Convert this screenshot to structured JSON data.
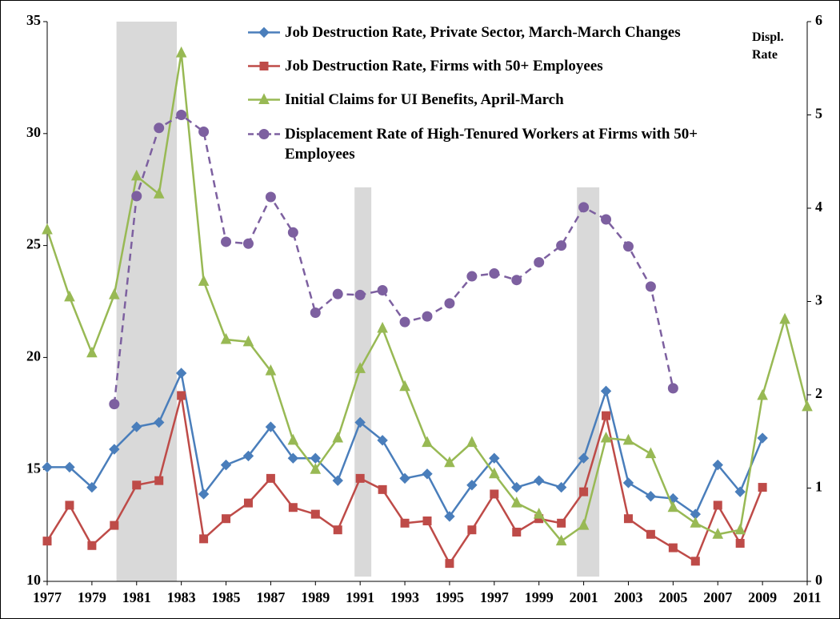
{
  "chart_data": {
    "type": "line",
    "y2_label": "Displ. Rate",
    "x": [
      1977,
      1978,
      1979,
      1980,
      1981,
      1982,
      1983,
      1984,
      1985,
      1986,
      1987,
      1988,
      1989,
      1990,
      1991,
      1992,
      1993,
      1994,
      1995,
      1996,
      1997,
      1998,
      1999,
      2000,
      2001,
      2002,
      2003,
      2004,
      2005,
      2006,
      2007,
      2008,
      2009,
      2010,
      2011
    ],
    "xlim": [
      1977,
      2011
    ],
    "xticks": [
      1977,
      1979,
      1981,
      1983,
      1985,
      1987,
      1989,
      1991,
      1993,
      1995,
      1997,
      1999,
      2001,
      2003,
      2005,
      2007,
      2009,
      2011
    ],
    "ylim": [
      10,
      35
    ],
    "yticks": [
      10,
      15,
      20,
      25,
      30,
      35
    ],
    "y2lim": [
      0,
      6
    ],
    "y2ticks": [
      0,
      1,
      2,
      3,
      4,
      5,
      6
    ],
    "shaded_periods": [
      [
        1980.1,
        1982.8
      ],
      [
        1990.75,
        1991.5
      ],
      [
        2000.7,
        2001.7
      ]
    ],
    "shade_color": "#d9d9d9",
    "series": [
      {
        "name": "Job Destruction Rate, Private Sector, March-March Changes",
        "color": "#4a7ebb",
        "marker": "diamond",
        "dashed": false,
        "values": [
          15.1,
          15.1,
          14.2,
          15.9,
          16.9,
          17.1,
          19.3,
          13.9,
          15.2,
          15.6,
          16.9,
          15.5,
          15.5,
          14.5,
          17.1,
          16.3,
          14.6,
          14.8,
          12.9,
          14.3,
          15.5,
          14.2,
          14.5,
          14.2,
          15.5,
          18.5,
          14.4,
          13.8,
          13.7,
          13.0,
          15.2,
          14.0,
          16.4,
          null,
          null
        ]
      },
      {
        "name": "Job Destruction Rate, Firms with 50+ Employees",
        "color": "#be4b48",
        "marker": "square",
        "dashed": false,
        "values": [
          11.8,
          13.4,
          11.6,
          12.5,
          14.3,
          14.5,
          18.3,
          11.9,
          12.8,
          13.5,
          14.6,
          13.3,
          13.0,
          12.3,
          14.6,
          14.1,
          12.6,
          12.7,
          10.8,
          12.3,
          13.9,
          12.2,
          12.8,
          12.6,
          14.0,
          17.4,
          12.8,
          12.1,
          11.5,
          10.9,
          13.4,
          11.7,
          14.2,
          null,
          null
        ]
      },
      {
        "name": "Initial Claims for UI Benefits, April-March",
        "color": "#98b954",
        "marker": "triangle",
        "dashed": false,
        "values": [
          25.7,
          22.7,
          20.2,
          22.8,
          28.1,
          27.3,
          33.6,
          23.4,
          20.8,
          20.7,
          19.4,
          16.3,
          15.0,
          16.4,
          19.5,
          21.3,
          18.7,
          16.2,
          15.3,
          16.2,
          14.8,
          13.5,
          13.0,
          11.8,
          12.5,
          16.4,
          16.3,
          15.7,
          13.3,
          12.6,
          12.1,
          12.3,
          18.3,
          21.7,
          17.8
        ]
      },
      {
        "name": "Displacement Rate of High-Tenured Workers at Firms with 50+ Employees",
        "color": "#7d60a0",
        "marker": "circle",
        "dashed": true,
        "axis": "y2",
        "values": [
          null,
          null,
          null,
          1.9,
          4.13,
          4.86,
          5.0,
          4.82,
          3.64,
          3.62,
          4.12,
          3.74,
          2.88,
          3.08,
          3.07,
          3.12,
          2.78,
          2.84,
          2.98,
          3.27,
          3.3,
          3.23,
          3.42,
          3.6,
          4.01,
          3.88,
          3.59,
          3.16,
          2.07,
          null,
          null,
          null,
          null,
          null,
          null
        ]
      }
    ]
  }
}
